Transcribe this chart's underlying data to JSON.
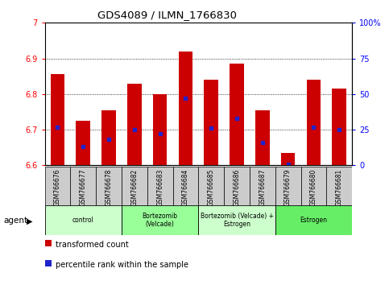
{
  "title": "GDS4089 / ILMN_1766830",
  "samples": [
    "GSM766676",
    "GSM766677",
    "GSM766678",
    "GSM766682",
    "GSM766683",
    "GSM766684",
    "GSM766685",
    "GSM766686",
    "GSM766687",
    "GSM766679",
    "GSM766680",
    "GSM766681"
  ],
  "transformed_count": [
    6.855,
    6.725,
    6.755,
    6.83,
    6.8,
    6.92,
    6.84,
    6.885,
    6.755,
    6.635,
    6.84,
    6.815
  ],
  "percentile_rank": [
    27,
    13,
    18,
    25,
    22,
    47,
    26,
    33,
    16,
    1,
    27,
    25
  ],
  "ymin": 6.6,
  "ymax": 7.0,
  "yticks_left": [
    6.6,
    6.7,
    6.8,
    6.9,
    7.0
  ],
  "ytick_labels_left": [
    "6.6",
    "6.7",
    "6.8",
    "6.9",
    "7"
  ],
  "right_yticks": [
    0,
    25,
    50,
    75,
    100
  ],
  "right_ytick_labels": [
    "0",
    "25",
    "50",
    "75",
    "100%"
  ],
  "bar_color": "#cc0000",
  "marker_color": "#2222cc",
  "grid_color": "#000000",
  "bg_color": "#ffffff",
  "plot_bg": "#ffffff",
  "tick_bg_color": "#cccccc",
  "group_labels": [
    "control",
    "Bortezomib\n(Velcade)",
    "Bortezomib (Velcade) +\nEstrogen",
    "Estrogen"
  ],
  "group_starts": [
    0,
    3,
    6,
    9
  ],
  "group_ends": [
    3,
    6,
    9,
    12
  ],
  "group_colors": [
    "#ccffcc",
    "#99ff99",
    "#ccffcc",
    "#66ee66"
  ],
  "legend_items": [
    "transformed count",
    "percentile rank within the sample"
  ],
  "agent_label": "agent"
}
